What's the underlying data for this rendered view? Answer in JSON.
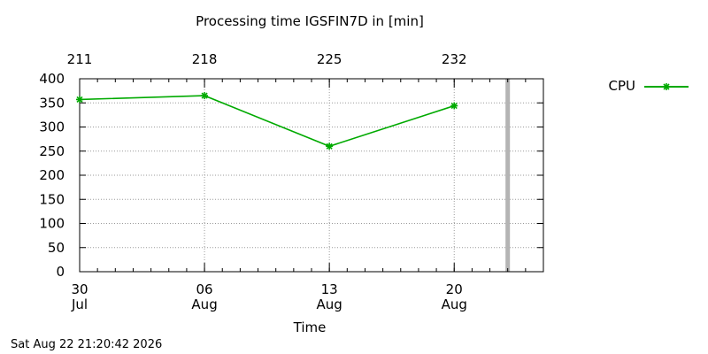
{
  "chart_data": {
    "type": "line",
    "title": "Processing time IGSFIN7D in [min]",
    "xlabel": "Time",
    "ylabel": "",
    "ylim": [
      0,
      400
    ],
    "yticks": [
      0,
      50,
      100,
      150,
      200,
      250,
      300,
      350,
      400
    ],
    "xlim": [
      "2026-07-30",
      "2026-08-25"
    ],
    "xticks": [
      {
        "date": "2026-07-30",
        "day": "30",
        "month": "Jul"
      },
      {
        "date": "2026-08-06",
        "day": "06",
        "month": "Aug"
      },
      {
        "date": "2026-08-13",
        "day": "13",
        "month": "Aug"
      },
      {
        "date": "2026-08-20",
        "day": "20",
        "month": "Aug"
      }
    ],
    "top_axis_ticks": [
      {
        "date": "2026-07-30",
        "label": "211"
      },
      {
        "date": "2026-08-06",
        "label": "218"
      },
      {
        "date": "2026-08-13",
        "label": "225"
      },
      {
        "date": "2026-08-20",
        "label": "232"
      }
    ],
    "minor_tick_days": 1,
    "current_date": "2026-08-23",
    "grid": true,
    "legend_position": "top-right",
    "series": [
      {
        "name": "CPU",
        "color": "#00aa00",
        "marker": "star",
        "x": [
          "2026-07-30",
          "2026-08-06",
          "2026-08-13",
          "2026-08-20"
        ],
        "y": [
          357,
          365,
          260,
          344
        ]
      }
    ]
  },
  "footer": {
    "timestamp": "Sat Aug 22 21:20:42 2026"
  }
}
